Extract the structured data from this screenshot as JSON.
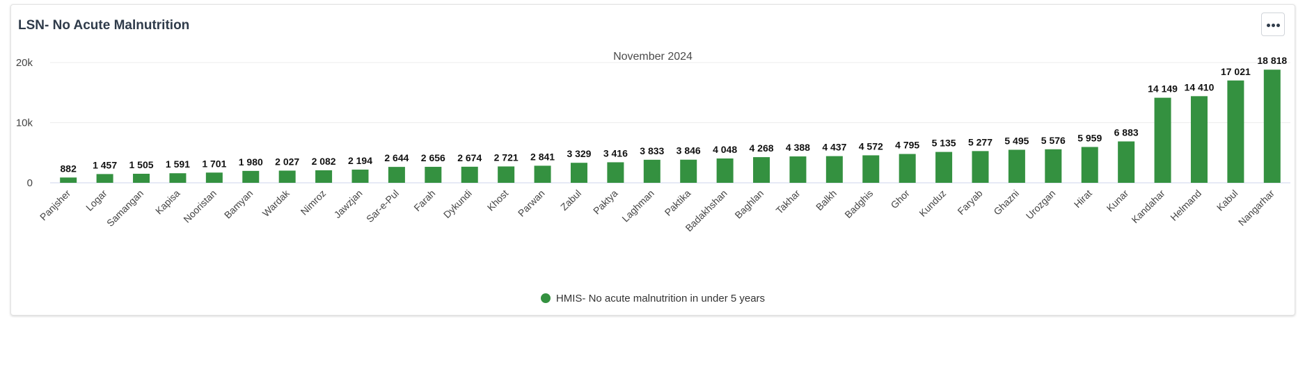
{
  "header": {
    "title": "LSN- No Acute Malnutrition",
    "menu_icon": "more-horizontal-icon"
  },
  "chart_data": {
    "type": "bar",
    "title": "November 2024",
    "xlabel": "",
    "ylabel": "",
    "ylim": [
      0,
      20000
    ],
    "yticks": [
      0,
      10000,
      20000
    ],
    "ytick_labels": [
      "0",
      "10k",
      "20k"
    ],
    "grid": true,
    "legend_position": "bottom",
    "color": "#349140",
    "categories": [
      "Panjsher",
      "Logar",
      "Samangan",
      "Kapisa",
      "Nooristan",
      "Bamyan",
      "Wardak",
      "Nimroz",
      "Jawzjan",
      "Sar-e-Pul",
      "Farah",
      "Dykundi",
      "Khost",
      "Parwan",
      "Zabul",
      "Paktya",
      "Laghman",
      "Paktika",
      "Badakhshan",
      "Baghlan",
      "Takhar",
      "Balkh",
      "Badghis",
      "Ghor",
      "Kunduz",
      "Faryab",
      "Ghazni",
      "Urozgan",
      "Hirat",
      "Kunar",
      "Kandahar",
      "Helmand",
      "Kabul",
      "Nangarhar"
    ],
    "series": [
      {
        "name": "HMIS- No acute malnutrition in under 5 years",
        "values": [
          882,
          1457,
          1505,
          1591,
          1701,
          1980,
          2027,
          2082,
          2194,
          2644,
          2656,
          2674,
          2721,
          2841,
          3329,
          3416,
          3833,
          3846,
          4048,
          4268,
          4388,
          4437,
          4572,
          4795,
          5135,
          5277,
          5495,
          5576,
          5959,
          6883,
          14149,
          14410,
          17021,
          18818
        ],
        "labels": [
          "882",
          "1 457",
          "1 505",
          "1 591",
          "1 701",
          "1 980",
          "2 027",
          "2 082",
          "2 194",
          "2 644",
          "2 656",
          "2 674",
          "2 721",
          "2 841",
          "3 329",
          "3 416",
          "3 833",
          "3 846",
          "4 048",
          "4 268",
          "4 388",
          "4 437",
          "4 572",
          "4 795",
          "5 135",
          "5 277",
          "5 495",
          "5 576",
          "5 959",
          "6 883",
          "14 149",
          "14 410",
          "17 021",
          "18 818"
        ]
      }
    ]
  }
}
